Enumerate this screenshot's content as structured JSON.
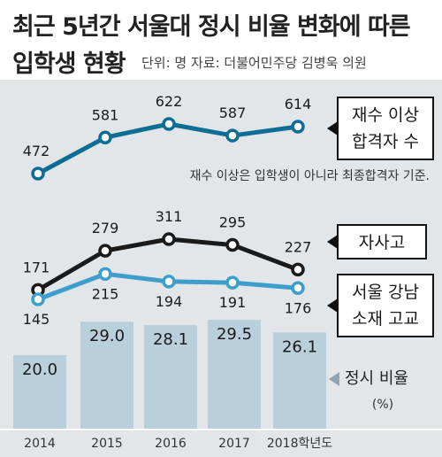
{
  "header": {
    "title_line1": "최근 5년간 서울대 정시 비율 변화에 따른",
    "title_line2": "입학생 현황",
    "source": "단위: 명  자료: 더불어민주당 김병욱 의원"
  },
  "note": "재수 이상은 입학생이 아니라 최종합격자 기준.",
  "chart_data": {
    "type": "line",
    "x": [
      "2014",
      "2015",
      "2016",
      "2017",
      "2018학년도"
    ],
    "series": [
      {
        "name": [
          "재수 이상",
          "합격자 수"
        ],
        "values": [
          472,
          581,
          622,
          587,
          614
        ],
        "color": "#0d6d94"
      },
      {
        "name": [
          "자사고"
        ],
        "values": [
          171,
          279,
          311,
          295,
          227
        ],
        "color": "#1a1a1a"
      },
      {
        "name": [
          "서울 강남",
          "소재 고교"
        ],
        "values": [
          145,
          215,
          194,
          191,
          176
        ],
        "color": "#3d9dcc"
      }
    ],
    "bars": {
      "name": [
        "정시 비율",
        "(%)"
      ],
      "values": [
        20.0,
        29.0,
        28.1,
        29.5,
        26.1
      ],
      "labels": [
        "20.0",
        "29.0",
        "28.1",
        "29.5",
        "26.1"
      ],
      "color": "#b9cfdc"
    }
  }
}
